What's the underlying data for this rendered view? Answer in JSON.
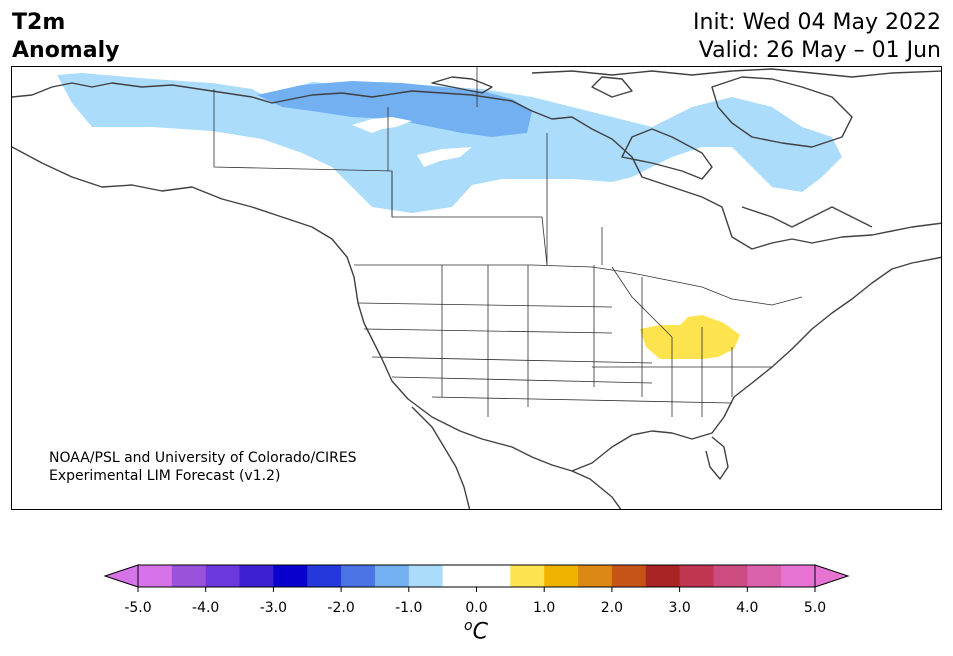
{
  "header": {
    "title_line1": "T2m",
    "title_line2": "Anomaly",
    "init": "Init: Wed 04 May 2022",
    "valid": "Valid: 26 May – 01 Jun"
  },
  "map": {
    "region": "North America",
    "credit_line1": "NOAA/PSL and University of Colorado/CIRES",
    "credit_line2": "Experimental LIM Forecast (v1.2)",
    "anomaly_areas": [
      {
        "region": "northern Canada",
        "level": "-1.0 to -0.5",
        "color": "#abdcfb"
      },
      {
        "region": "Northwest Territories / Nunavut",
        "level": "-1.5 to -1.0",
        "color": "#72b0f2"
      },
      {
        "region": "Ohio Valley",
        "level": "0.5 to 1.0",
        "color": "#fde34d"
      }
    ]
  },
  "colorbar": {
    "unit": "C",
    "unit_prefix": "o",
    "ticks": [
      "-5.0",
      "-4.0",
      "-3.0",
      "-2.0",
      "-1.0",
      "0.0",
      "1.0",
      "2.0",
      "3.0",
      "4.0",
      "5.0"
    ],
    "colors": [
      "#d773e8",
      "#9a52dc",
      "#6a38dc",
      "#3c20d2",
      "#0a00ce",
      "#2438dc",
      "#4c74e4",
      "#72b0f2",
      "#abdcfb",
      "#ffffff",
      "#ffffff",
      "#fde34d",
      "#f2b300",
      "#dc8814",
      "#c55416",
      "#a92425",
      "#c03550",
      "#cc4c80",
      "#da62ac",
      "#e673d2"
    ],
    "under_color": "#d773e8",
    "over_color": "#e673d2"
  }
}
